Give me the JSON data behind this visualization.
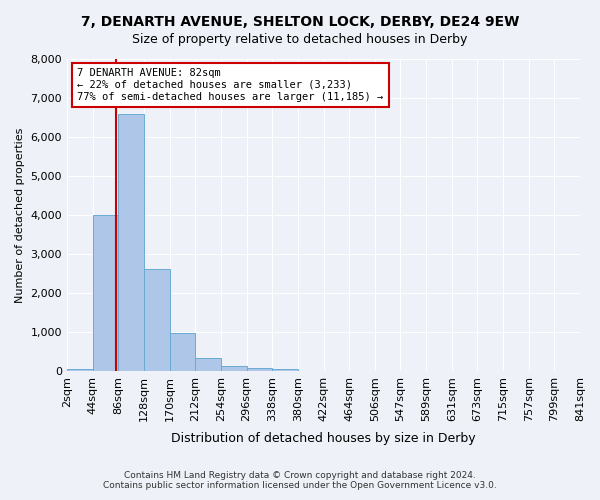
{
  "title_line1": "7, DENARTH AVENUE, SHELTON LOCK, DERBY, DE24 9EW",
  "title_line2": "Size of property relative to detached houses in Derby",
  "xlabel": "Distribution of detached houses by size in Derby",
  "ylabel": "Number of detached properties",
  "bin_labels": [
    "2sqm",
    "44sqm",
    "86sqm",
    "128sqm",
    "170sqm",
    "212sqm",
    "254sqm",
    "296sqm",
    "338sqm",
    "380sqm",
    "422sqm",
    "464sqm",
    "506sqm",
    "547sqm",
    "589sqm",
    "631sqm",
    "673sqm",
    "715sqm",
    "757sqm",
    "799sqm",
    "841sqm"
  ],
  "bar_values": [
    60,
    4000,
    6600,
    2620,
    960,
    330,
    120,
    75,
    50,
    0,
    0,
    0,
    0,
    0,
    0,
    0,
    0,
    0,
    0,
    0
  ],
  "bar_color": "#aec6e8",
  "bar_edge_color": "#6aabd2",
  "annotation_title": "7 DENARTH AVENUE: 82sqm",
  "annotation_line1": "← 22% of detached houses are smaller (3,233)",
  "annotation_line2": "77% of semi-detached houses are larger (11,185) →",
  "annotation_box_color": "#ffffff",
  "annotation_box_edge": "#cc0000",
  "vline_color": "#cc0000",
  "background_color": "#eef2f8",
  "plot_background": "#eef2f8",
  "grid_color": "#ffffff",
  "ylim": [
    0,
    8000
  ],
  "yticks": [
    0,
    1000,
    2000,
    3000,
    4000,
    5000,
    6000,
    7000,
    8000
  ],
  "footer_line1": "Contains HM Land Registry data © Crown copyright and database right 2024.",
  "footer_line2": "Contains public sector information licensed under the Open Government Licence v3.0."
}
